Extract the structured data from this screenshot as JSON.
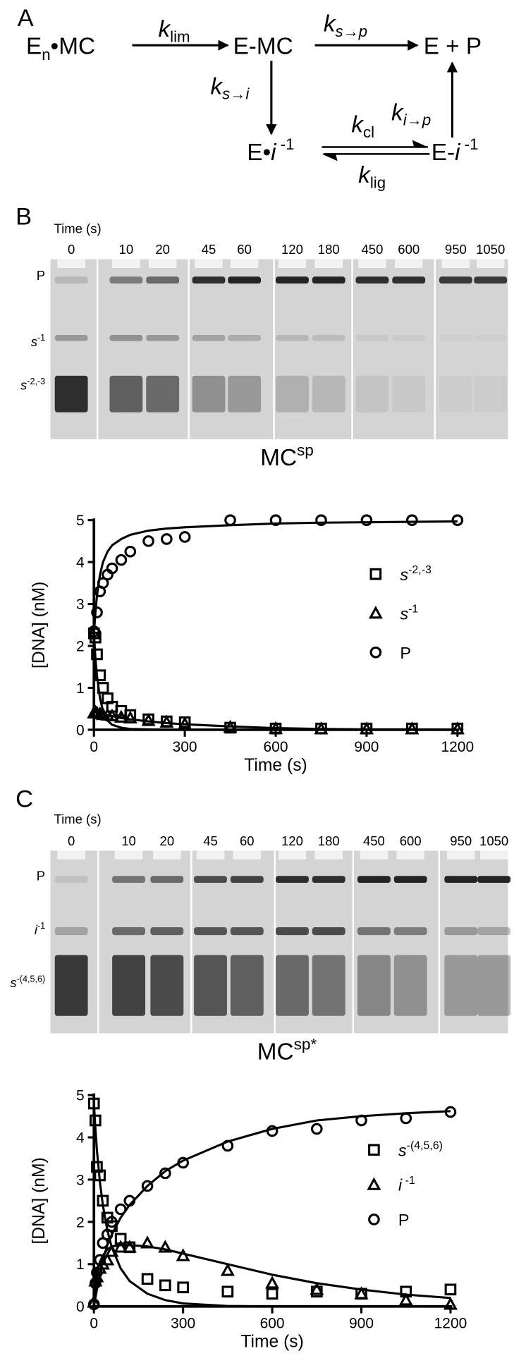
{
  "scheme": {
    "label": "A",
    "nodes": [
      {
        "text": "E",
        "sub": "n",
        "rest": "•MC"
      },
      {
        "text": "E-MC"
      },
      {
        "text": "E + P"
      },
      {
        "text": "E•",
        "italic": "i",
        "sup": " -1"
      },
      {
        "text": "E-",
        "italic": "i",
        "sup": " -1"
      }
    ],
    "rates": [
      {
        "k": "k",
        "sub": "lim"
      },
      {
        "k": "k",
        "sub": "s→p"
      },
      {
        "k": "k",
        "sub": "s→i"
      },
      {
        "k": "k",
        "sub": "i→p"
      },
      {
        "k": "k",
        "sub": "cl"
      },
      {
        "k": "k",
        "sub": "lig"
      }
    ]
  },
  "gels": [
    {
      "label": "B",
      "time_label": "Time (s)",
      "times": [
        0,
        10,
        20,
        45,
        60,
        120,
        180,
        450,
        600,
        950,
        1050
      ],
      "rows": [
        {
          "text": "P"
        },
        {
          "text": "s",
          "sup": "-1"
        },
        {
          "text": "s",
          "sup": "-2,-3"
        }
      ],
      "caption": {
        "text": "MC",
        "sup": "sp"
      }
    },
    {
      "label": "C",
      "time_label": "Time (s)",
      "times": [
        0,
        10,
        20,
        45,
        60,
        120,
        180,
        450,
        600,
        950,
        1050
      ],
      "rows": [
        {
          "text": "P"
        },
        {
          "text": "i",
          "sup": "-1"
        },
        {
          "text": "s",
          "sup": "-(4,5,6)"
        }
      ],
      "caption": {
        "text": "MC",
        "sup": "sp*"
      }
    }
  ],
  "chart_data": [
    {
      "type": "scatter",
      "x_label": "Time (s)",
      "y_label": "[DNA] (nM)",
      "xlim": [
        0,
        1200
      ],
      "xticks": [
        0,
        300,
        600,
        900,
        1200
      ],
      "ylim": [
        0,
        5
      ],
      "yticks": [
        0,
        1,
        2,
        3,
        4,
        5
      ],
      "x": [
        0,
        5,
        10,
        20,
        30,
        45,
        60,
        90,
        120,
        180,
        240,
        300,
        450,
        600,
        750,
        900,
        1050,
        1200
      ],
      "series": [
        {
          "name": "s",
          "superscript": "-2,-3",
          "marker": "square",
          "color": "#000000",
          "values": [
            2.3,
            2.2,
            1.8,
            1.3,
            1.0,
            0.75,
            0.55,
            0.45,
            0.35,
            0.25,
            0.2,
            0.18,
            0.05,
            0.03,
            0.03,
            0.03,
            0.03,
            0.03
          ]
        },
        {
          "name": "s",
          "superscript": "-1",
          "marker": "triangle",
          "color": "#000000",
          "values": [
            0.4,
            0.42,
            0.4,
            0.38,
            0.36,
            0.35,
            0.33,
            0.3,
            0.28,
            0.22,
            0.18,
            0.14,
            0.06,
            0.03,
            0.02,
            0.02,
            0.02,
            0.02
          ]
        },
        {
          "name": "P",
          "marker": "circle",
          "color": "#000000",
          "values": [
            2.35,
            2.3,
            2.8,
            3.3,
            3.5,
            3.7,
            3.85,
            4.05,
            4.25,
            4.5,
            4.55,
            4.6,
            5.0,
            5.0,
            5.0,
            5.0,
            5.0,
            5.0
          ]
        }
      ],
      "fit_x": [
        0,
        5,
        10,
        20,
        30,
        45,
        60,
        90,
        120,
        180,
        240,
        300,
        450,
        600,
        750,
        900,
        1050,
        1200
      ],
      "fits": [
        {
          "values": [
            2.3,
            1.7,
            1.3,
            0.75,
            0.45,
            0.22,
            0.12,
            0.05,
            0.02,
            0.01,
            0,
            0,
            0,
            0,
            0,
            0,
            0,
            0
          ]
        },
        {
          "values": [
            0.4,
            0.42,
            0.42,
            0.4,
            0.38,
            0.35,
            0.33,
            0.28,
            0.25,
            0.2,
            0.16,
            0.13,
            0.08,
            0.04,
            0.02,
            0.01,
            0.01,
            0
          ]
        },
        {
          "values": [
            2.3,
            2.8,
            3.2,
            3.7,
            4.0,
            4.25,
            4.4,
            4.55,
            4.65,
            4.75,
            4.8,
            4.83,
            4.88,
            4.92,
            4.94,
            4.95,
            4.96,
            4.97
          ]
        }
      ],
      "legend": "right"
    },
    {
      "type": "scatter",
      "x_label": "Time (s)",
      "y_label": "[DNA] (nM)",
      "xlim": [
        0,
        1200
      ],
      "xticks": [
        0,
        300,
        600,
        900,
        1200
      ],
      "ylim": [
        0,
        5
      ],
      "yticks": [
        0,
        1,
        2,
        3,
        4,
        5
      ],
      "x": [
        0,
        5,
        10,
        20,
        30,
        45,
        60,
        90,
        120,
        180,
        240,
        300,
        450,
        600,
        750,
        900,
        1050,
        1200
      ],
      "series": [
        {
          "name": "s",
          "superscript": "-(4,5,6)",
          "marker": "square",
          "color": "#000000",
          "values": [
            4.8,
            4.4,
            3.3,
            3.1,
            2.5,
            2.1,
            1.9,
            1.6,
            1.4,
            0.65,
            0.5,
            0.45,
            0.35,
            0.3,
            0.35,
            0.3,
            0.35,
            0.4
          ]
        },
        {
          "name": "i",
          "superscript": " -1",
          "marker": "triangle",
          "color": "#000000",
          "values": [
            0.1,
            0.6,
            0.7,
            0.9,
            1.0,
            1.1,
            1.3,
            1.4,
            1.4,
            1.5,
            1.4,
            1.2,
            0.85,
            0.55,
            0.4,
            0.3,
            0.15,
            0.05
          ]
        },
        {
          "name": "P",
          "marker": "circle",
          "color": "#000000",
          "values": [
            0.05,
            0.55,
            0.8,
            1.1,
            1.5,
            1.7,
            2.0,
            2.3,
            2.5,
            2.85,
            3.15,
            3.4,
            3.8,
            4.15,
            4.2,
            4.4,
            4.45,
            4.6
          ]
        }
      ],
      "fit_x": [
        0,
        5,
        10,
        20,
        30,
        45,
        60,
        90,
        120,
        180,
        240,
        300,
        450,
        600,
        750,
        900,
        1050,
        1200
      ],
      "fits": [
        {
          "values": [
            4.8,
            4.2,
            3.7,
            2.95,
            2.4,
            1.8,
            1.4,
            0.9,
            0.6,
            0.3,
            0.15,
            0.07,
            0.01,
            0,
            0,
            0,
            0,
            0
          ]
        },
        {
          "values": [
            0,
            0.45,
            0.75,
            1.05,
            1.2,
            1.35,
            1.42,
            1.45,
            1.45,
            1.42,
            1.35,
            1.25,
            1.0,
            0.75,
            0.55,
            0.4,
            0.28,
            0.2
          ]
        },
        {
          "values": [
            0,
            0.2,
            0.4,
            0.8,
            1.1,
            1.45,
            1.7,
            2.1,
            2.4,
            2.85,
            3.2,
            3.45,
            3.9,
            4.2,
            4.4,
            4.5,
            4.57,
            4.62
          ]
        }
      ],
      "legend": "right"
    }
  ]
}
